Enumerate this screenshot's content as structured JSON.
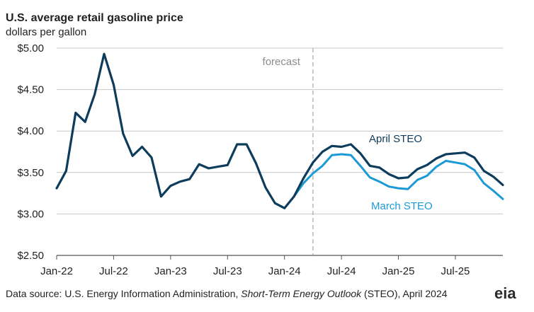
{
  "chart_data": {
    "type": "line",
    "title": "U.S. average retail gasoline price",
    "subtitle": "dollars per gallon",
    "ylim": [
      2.5,
      5.0
    ],
    "yticks": [
      2.5,
      3.0,
      3.5,
      4.0,
      4.5,
      5.0
    ],
    "ytick_labels": [
      "$2.50",
      "$3.00",
      "$3.50",
      "$4.00",
      "$4.50",
      "$5.00"
    ],
    "xlim": [
      "2022-01",
      "2025-12"
    ],
    "xticks": [
      "2022-01",
      "2022-07",
      "2023-01",
      "2023-07",
      "2024-01",
      "2024-07",
      "2025-01",
      "2025-07"
    ],
    "xtick_labels": [
      "Jan-22",
      "Jul-22",
      "Jan-23",
      "Jul-23",
      "Jan-24",
      "Jul-24",
      "Jan-25",
      "Jul-25"
    ],
    "grid": true,
    "forecast_start": "2024-04",
    "forecast_label": "forecast",
    "series": [
      {
        "name": "April STEO",
        "color": "#0d3c5c",
        "x": [
          "2022-01",
          "2022-02",
          "2022-03",
          "2022-04",
          "2022-05",
          "2022-06",
          "2022-07",
          "2022-08",
          "2022-09",
          "2022-10",
          "2022-11",
          "2022-12",
          "2023-01",
          "2023-02",
          "2023-03",
          "2023-04",
          "2023-05",
          "2023-06",
          "2023-07",
          "2023-08",
          "2023-09",
          "2023-10",
          "2023-11",
          "2023-12",
          "2024-01",
          "2024-02",
          "2024-03",
          "2024-04",
          "2024-05",
          "2024-06",
          "2024-07",
          "2024-08",
          "2024-09",
          "2024-10",
          "2024-11",
          "2024-12",
          "2025-01",
          "2025-02",
          "2025-03",
          "2025-04",
          "2025-05",
          "2025-06",
          "2025-07",
          "2025-08",
          "2025-09",
          "2025-10",
          "2025-11",
          "2025-12"
        ],
        "values": [
          3.31,
          3.52,
          4.22,
          4.11,
          4.44,
          4.93,
          4.56,
          3.97,
          3.7,
          3.81,
          3.68,
          3.21,
          3.34,
          3.39,
          3.42,
          3.6,
          3.55,
          3.57,
          3.59,
          3.84,
          3.84,
          3.61,
          3.32,
          3.13,
          3.07,
          3.21,
          3.43,
          3.62,
          3.75,
          3.82,
          3.81,
          3.84,
          3.73,
          3.58,
          3.56,
          3.48,
          3.43,
          3.44,
          3.54,
          3.59,
          3.67,
          3.72,
          3.73,
          3.74,
          3.68,
          3.52,
          3.45,
          3.35
        ]
      },
      {
        "name": "March STEO",
        "color": "#1b9ad6",
        "x": [
          "2024-02",
          "2024-03",
          "2024-04",
          "2024-05",
          "2024-06",
          "2024-07",
          "2024-08",
          "2024-09",
          "2024-10",
          "2024-11",
          "2024-12",
          "2025-01",
          "2025-02",
          "2025-03",
          "2025-04",
          "2025-05",
          "2025-06",
          "2025-07",
          "2025-08",
          "2025-09",
          "2025-10",
          "2025-11",
          "2025-12"
        ],
        "values": [
          3.21,
          3.37,
          3.49,
          3.58,
          3.71,
          3.72,
          3.71,
          3.58,
          3.44,
          3.39,
          3.33,
          3.31,
          3.3,
          3.41,
          3.46,
          3.57,
          3.64,
          3.62,
          3.6,
          3.53,
          3.37,
          3.28,
          3.18
        ]
      }
    ],
    "source_prefix": "Data source: U.S. Energy Information Administration, ",
    "source_italic": "Short-Term Energy Outlook",
    "source_suffix": " (STEO), April 2024",
    "logo_text": "eia"
  }
}
